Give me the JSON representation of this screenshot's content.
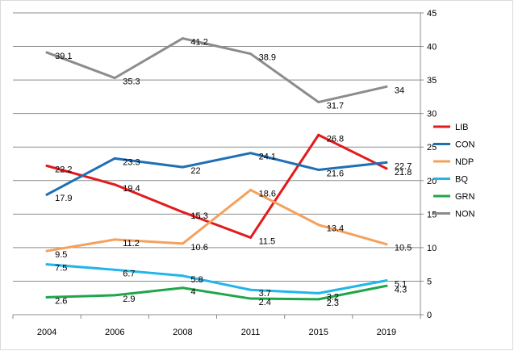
{
  "chart_data": {
    "type": "line",
    "title": "",
    "xlabel": "",
    "ylabel": "",
    "categories": [
      "2004",
      "2006",
      "2008",
      "2011",
      "2015",
      "2019"
    ],
    "ylim": [
      0,
      45
    ],
    "yticks": [
      0,
      5,
      10,
      15,
      20,
      25,
      30,
      35,
      40,
      45
    ],
    "y_axis_side": "right",
    "grid": true,
    "legend_position": "right",
    "series": [
      {
        "name": "LIB",
        "color": "#e31a1c",
        "values": [
          22.2,
          19.4,
          15.3,
          11.5,
          26.8,
          21.8
        ]
      },
      {
        "name": "CON",
        "color": "#1f6fb4",
        "values": [
          17.9,
          23.3,
          22,
          24.1,
          21.6,
          22.7
        ]
      },
      {
        "name": "NDP",
        "color": "#f4a15d",
        "values": [
          9.5,
          11.2,
          10.6,
          18.6,
          13.4,
          10.5
        ]
      },
      {
        "name": "BQ",
        "color": "#22b5ea",
        "values": [
          7.5,
          6.7,
          5.8,
          3.7,
          3.2,
          5.1
        ]
      },
      {
        "name": "GRN",
        "color": "#1fa64a",
        "values": [
          2.6,
          2.9,
          4,
          2.4,
          2.3,
          4.3
        ]
      },
      {
        "name": "NON",
        "color": "#8c8c8c",
        "values": [
          39.1,
          35.3,
          41.2,
          38.9,
          31.7,
          34
        ]
      }
    ]
  }
}
